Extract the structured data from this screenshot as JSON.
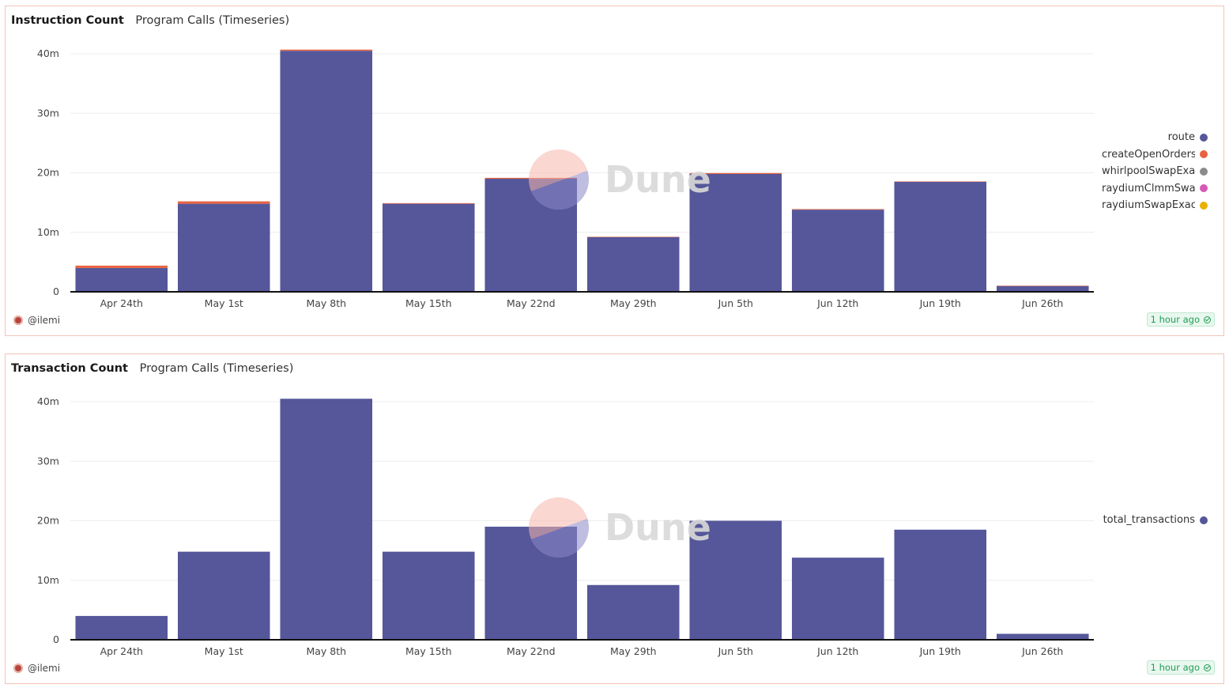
{
  "panels": {
    "top": {
      "title": "Instruction Count",
      "subtitle": "Program Calls (Timeseries)",
      "author": "@ilemi",
      "updated": "1 hour ago",
      "watermark": "Dune",
      "legend": [
        {
          "label": "route",
          "color": "#55579a"
        },
        {
          "label": "createOpenOrders",
          "color": "#e9623f"
        },
        {
          "label": "whirlpoolSwapExactInput",
          "color": "#8c8c8c"
        },
        {
          "label": "raydiumClmmSwapExactInput",
          "color": "#d65ab5"
        },
        {
          "label": "raydiumSwapExactInput",
          "color": "#e8b300"
        }
      ]
    },
    "bottom": {
      "title": "Transaction Count",
      "subtitle": "Program Calls (Timeseries)",
      "author": "@ilemi",
      "updated": "1 hour ago",
      "watermark": "Dune",
      "legend": [
        {
          "label": "total_transactions",
          "color": "#55579a"
        }
      ]
    }
  },
  "chart_data": [
    {
      "type": "bar",
      "stacked": true,
      "title": "Instruction Count",
      "subtitle": "Program Calls (Timeseries)",
      "categories": [
        "Apr 24th",
        "May 1st",
        "May 8th",
        "May 15th",
        "May 22nd",
        "May 29th",
        "Jun 5th",
        "Jun 12th",
        "Jun 19th",
        "Jun 26th"
      ],
      "yticks": [
        "0",
        "10m",
        "20m",
        "30m",
        "40m"
      ],
      "ylim": [
        0,
        40000000
      ],
      "grid": true,
      "legend_position": "right",
      "series": [
        {
          "name": "route",
          "color": "#55579a",
          "values": [
            4000000,
            14800000,
            40500000,
            14800000,
            19000000,
            9200000,
            19800000,
            13800000,
            18500000,
            1000000
          ]
        },
        {
          "name": "createOpenOrders",
          "color": "#e9623f",
          "values": [
            400000,
            400000,
            200000,
            100000,
            150000,
            50000,
            150000,
            100000,
            50000,
            20000
          ]
        },
        {
          "name": "whirlpoolSwapExactInput",
          "color": "#8c8c8c",
          "values": [
            0,
            0,
            0,
            0,
            0,
            0,
            0,
            0,
            0,
            0
          ]
        },
        {
          "name": "raydiumClmmSwapExactInput",
          "color": "#d65ab5",
          "values": [
            0,
            0,
            0,
            0,
            0,
            0,
            0,
            0,
            0,
            0
          ]
        },
        {
          "name": "raydiumSwapExactInput",
          "color": "#e8b300",
          "values": [
            0,
            0,
            0,
            0,
            0,
            0,
            0,
            0,
            0,
            0
          ]
        }
      ]
    },
    {
      "type": "bar",
      "stacked": false,
      "title": "Transaction Count",
      "subtitle": "Program Calls (Timeseries)",
      "categories": [
        "Apr 24th",
        "May 1st",
        "May 8th",
        "May 15th",
        "May 22nd",
        "May 29th",
        "Jun 5th",
        "Jun 12th",
        "Jun 19th",
        "Jun 26th"
      ],
      "yticks": [
        "0",
        "10m",
        "20m",
        "30m",
        "40m"
      ],
      "ylim": [
        0,
        40000000
      ],
      "grid": true,
      "legend_position": "right",
      "series": [
        {
          "name": "total_transactions",
          "color": "#55579a",
          "values": [
            4000000,
            14800000,
            40500000,
            14800000,
            19000000,
            9200000,
            20000000,
            13800000,
            18500000,
            1000000
          ]
        }
      ]
    }
  ]
}
